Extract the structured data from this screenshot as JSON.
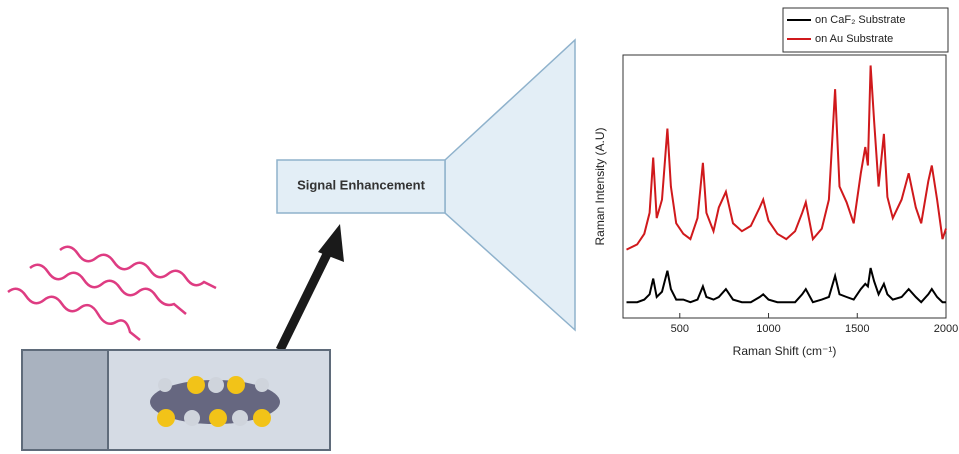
{
  "diagram": {
    "box_label": "Signal Enhancement"
  },
  "chart_data": {
    "type": "line",
    "x_label": "Raman Shift (cm⁻¹)",
    "y_label": "Raman Intensity (A.U)",
    "x": [
      200,
      260,
      300,
      330,
      350,
      370,
      400,
      430,
      450,
      480,
      520,
      560,
      600,
      630,
      650,
      690,
      720,
      760,
      800,
      850,
      900,
      950,
      970,
      1000,
      1050,
      1100,
      1150,
      1190,
      1210,
      1250,
      1300,
      1340,
      1375,
      1400,
      1440,
      1480,
      1520,
      1545,
      1560,
      1575,
      1595,
      1620,
      1650,
      1670,
      1700,
      1750,
      1790,
      1830,
      1860,
      1900,
      1920,
      1950,
      1980,
      2000
    ],
    "series": [
      {
        "name": "on CaF₂ Substrate",
        "color": "#000000",
        "values": [
          6,
          6,
          7,
          9,
          15,
          8,
          10,
          18,
          11,
          7,
          7,
          6,
          7,
          12,
          8,
          7,
          8,
          11,
          7,
          6,
          6,
          8,
          9,
          7,
          6,
          6,
          6,
          9,
          11,
          6,
          7,
          8,
          16,
          9,
          8,
          7,
          11,
          13,
          12,
          19,
          14,
          9,
          13,
          9,
          7,
          8,
          11,
          8,
          6,
          9,
          11,
          8,
          6,
          6
        ]
      },
      {
        "name": "on Au Substrate",
        "color": "#d0191c",
        "values": [
          26,
          28,
          32,
          40,
          61,
          38,
          45,
          72,
          50,
          36,
          32,
          30,
          38,
          59,
          40,
          33,
          42,
          48,
          36,
          33,
          35,
          42,
          45,
          37,
          32,
          30,
          33,
          40,
          44,
          30,
          34,
          45,
          87,
          50,
          44,
          36,
          55,
          65,
          58,
          96,
          75,
          50,
          70,
          46,
          38,
          45,
          55,
          42,
          36,
          52,
          58,
          45,
          30,
          34
        ]
      }
    ],
    "xlim": [
      180,
      2000
    ],
    "ylim": [
      0,
      100
    ],
    "xticks": [
      500,
      1000,
      1500,
      2000
    ]
  }
}
